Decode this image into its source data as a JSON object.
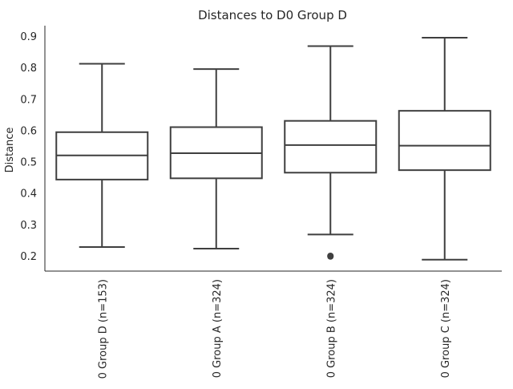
{
  "chart_data": {
    "type": "box",
    "title": "Distances to D0 Group D",
    "xlabel": "",
    "ylabel": "Distance",
    "ylim": [
      0.15,
      0.93
    ],
    "yticks": [
      "0.2",
      "0.3",
      "0.4",
      "0.5",
      "0.6",
      "0.7",
      "0.8",
      "0.9"
    ],
    "categories": [
      "0 Group D (n=153)",
      "0 Group A (n=324)",
      "0 Group B (n=324)",
      "0 Group C (n=324)"
    ],
    "boxes": [
      {
        "whisker_low": 0.228,
        "q1": 0.443,
        "median": 0.52,
        "q3": 0.594,
        "whisker_high": 0.812,
        "outliers": []
      },
      {
        "whisker_low": 0.223,
        "q1": 0.447,
        "median": 0.527,
        "q3": 0.61,
        "whisker_high": 0.795,
        "outliers": []
      },
      {
        "whisker_low": 0.268,
        "q1": 0.465,
        "median": 0.553,
        "q3": 0.63,
        "whisker_high": 0.868,
        "outliers": [
          0.198,
          0.2
        ]
      },
      {
        "whisker_low": 0.188,
        "q1": 0.473,
        "median": 0.551,
        "q3": 0.662,
        "whisker_high": 0.895,
        "outliers": []
      }
    ],
    "grid": false,
    "colors": {
      "box_fill": "#ffffff",
      "line": "#3f3f3f",
      "axis": "#262626",
      "text": "#262626"
    }
  }
}
